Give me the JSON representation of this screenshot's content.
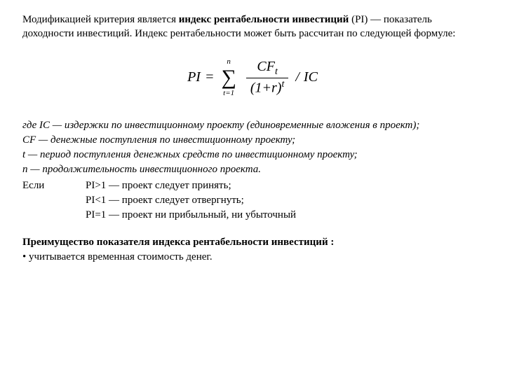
{
  "intro": {
    "prefix": "Модификацией критерия является ",
    "bold": "индекс рентабельности инвестиций",
    "rest": " (PI) — показатель доходности инвестиций. Индекс рентабельности может быть рассчитан по следующей формуле:"
  },
  "formula": {
    "lhs": "PI",
    "eq": "=",
    "sigma_top": "n",
    "sigma_bot": "t=1",
    "num_cf": "CF",
    "num_sub": "t",
    "den_base": "(1+r)",
    "den_sup": "t",
    "divide": "/",
    "ic": "IC"
  },
  "defs": {
    "ic": "где IC — издержки по инвестиционному проекту (единовременные вложения в проект);",
    "cf": "CF — денежные поступления по инвестиционному проекту;",
    "t": "t — период поступления денежных средств по инвестиционному проекту;",
    "n": "n — продолжительность инвестиционного проекта."
  },
  "ifblock": {
    "label": "Если",
    "c1": "PI>1 — проект следует принять;",
    "c2": "PI<1 — проект следует отвергнуть;",
    "c3": "PI=1 — проект ни прибыльный, ни убыточный"
  },
  "adv": {
    "title": "Преимущество показателя индекса рентабельности инвестиций :",
    "bullet": "• учитывается временная стоимость денег."
  },
  "style": {
    "text_color": "#000000",
    "bg_color": "#ffffff",
    "body_fontsize": 15,
    "formula_fontsize": 20,
    "sigma_fontsize": 30,
    "font_family": "Georgia, Times New Roman, serif"
  }
}
